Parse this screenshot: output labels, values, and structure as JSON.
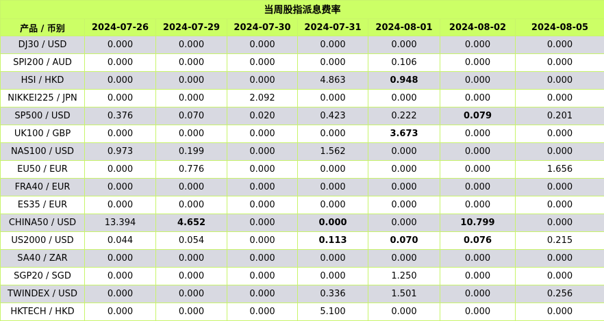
{
  "table": {
    "title": "当周股指派息费率",
    "header": [
      "产品 / 币别",
      "2024-07-26",
      "2024-07-29",
      "2024-07-30",
      "2024-07-31",
      "2024-08-01",
      "2024-08-02",
      "2024-08-05"
    ],
    "rows": [
      [
        "DJ30 / USD",
        "0.000",
        "0.000",
        "0.000",
        "0.000",
        "0.000",
        "0.000",
        "0.000"
      ],
      [
        "SPI200 / AUD",
        "0.000",
        "0.000",
        "0.000",
        "0.000",
        "0.106",
        "0.000",
        "0.000"
      ],
      [
        "HSI / HKD",
        "0.000",
        "0.000",
        "0.000",
        "4.863",
        "0.948",
        "0.000",
        "0.000"
      ],
      [
        "NIKKEI225 / JPN",
        "0.000",
        "0.000",
        "2.092",
        "0.000",
        "0.000",
        "0.000",
        "0.000"
      ],
      [
        "SP500 / USD",
        "0.376",
        "0.070",
        "0.020",
        "0.423",
        "0.222",
        "0.079",
        "0.201"
      ],
      [
        "UK100 / GBP",
        "0.000",
        "0.000",
        "0.000",
        "0.000",
        "3.673",
        "0.000",
        "0.000"
      ],
      [
        "NAS100 / USD",
        "0.973",
        "0.199",
        "0.000",
        "1.562",
        "0.000",
        "0.000",
        "0.000"
      ],
      [
        "EU50 / EUR",
        "0.000",
        "0.776",
        "0.000",
        "0.000",
        "0.000",
        "0.000",
        "1.656"
      ],
      [
        "FRA40 / EUR",
        "0.000",
        "0.000",
        "0.000",
        "0.000",
        "0.000",
        "0.000",
        "0.000"
      ],
      [
        "ES35 / EUR",
        "0.000",
        "0.000",
        "0.000",
        "0.000",
        "0.000",
        "0.000",
        "0.000"
      ],
      [
        "CHINA50 / USD",
        "13.394",
        "4.652",
        "0.000",
        "0.000",
        "0.000",
        "10.799",
        "0.000"
      ],
      [
        "US2000 / USD",
        "0.044",
        "0.054",
        "0.000",
        "0.113",
        "0.070",
        "0.076",
        "0.215"
      ],
      [
        "SA40 / ZAR",
        "0.000",
        "0.000",
        "0.000",
        "0.000",
        "0.000",
        "0.000",
        "0.000"
      ],
      [
        "SGP20 / SGD",
        "0.000",
        "0.000",
        "0.000",
        "0.000",
        "1.250",
        "0.000",
        "0.000"
      ],
      [
        "TWINDEX / USD",
        "0.000",
        "0.000",
        "0.000",
        "0.336",
        "1.501",
        "0.000",
        "0.256"
      ],
      [
        "HKTECH / HKD",
        "0.000",
        "0.000",
        "0.000",
        "5.100",
        "0.000",
        "0.000",
        "0.000"
      ]
    ],
    "bold": [
      [
        2,
        5
      ],
      [
        4,
        6
      ],
      [
        5,
        5
      ],
      [
        10,
        2
      ],
      [
        10,
        4
      ],
      [
        10,
        6
      ],
      [
        11,
        4
      ],
      [
        11,
        5
      ],
      [
        11,
        6
      ]
    ]
  }
}
